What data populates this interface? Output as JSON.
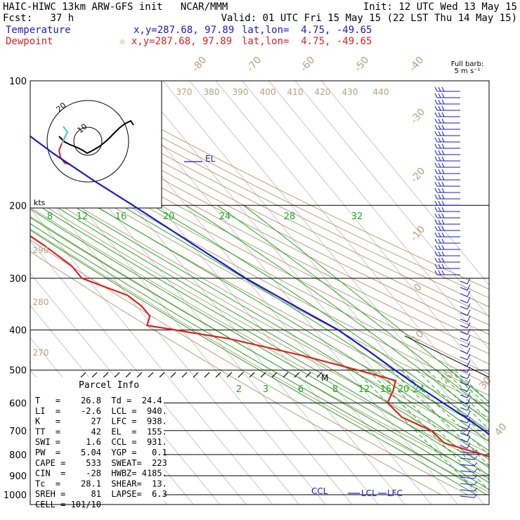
{
  "header": {
    "line1_left": "HAIC-HIWC 13km ARW-GFS init   NCAR/MMM",
    "line1_right": "Init: 12 UTC Wed 13 May 15",
    "line2_left": "Fcst:   37 h",
    "line2_right": "Valid: 01 UTC Fri 15 May 15 (22 LST Thu 14 May 15)",
    "temp_label": "Temperature",
    "temp_xy": "x,y=287.68, 97.89",
    "temp_latlon": "lat,lon=  4.75, -49.65",
    "dew_label": "Dewpoint",
    "dew_xy": "☆ x,y=287.68, 97.89",
    "dew_latlon": "lat,lon=  4.75, -49.65"
  },
  "barb_key": {
    "line1": "Full barb:",
    "line2": "5 m s⁻¹"
  },
  "colors": {
    "temperature": "#1a1acc",
    "dewpoint": "#e02020",
    "mixing_ratio": "#22a822",
    "dry_adiabat": "#b8a07a",
    "isobar": "#000000",
    "grid": "#c8c8c8"
  },
  "chart_data": {
    "type": "skew-t",
    "pressure_levels": [
      "100",
      "200",
      "300",
      "400",
      "500",
      "600",
      "700",
      "800",
      "900",
      "1000"
    ],
    "isotherm_labels": [
      "-80",
      "-70",
      "-60",
      "-50",
      "-40",
      "-30",
      "-20",
      "-10",
      "0",
      "10",
      "20",
      "30",
      "40"
    ],
    "theta_labels": [
      "370",
      "380",
      "390",
      "400",
      "410",
      "420",
      "430",
      "440",
      "290",
      "280",
      "270"
    ],
    "mixing_ratio_labels_upper": [
      "8",
      "12",
      "16",
      "20",
      "24",
      "28",
      "32"
    ],
    "mixing_ratio_labels_lower": [
      "2",
      "3",
      "4",
      "6",
      "8",
      "12",
      "16",
      "20",
      "24"
    ],
    "annotations": [
      "EL",
      "CCL",
      "LCL",
      "LFC",
      "M"
    ],
    "hodograph": {
      "unit": "kts",
      "ring_labels": [
        "10",
        "20"
      ]
    },
    "temperature": [
      {
        "p": 100,
        "t": -76
      },
      {
        "p": 120,
        "t": -72
      },
      {
        "p": 150,
        "t": -64
      },
      {
        "p": 175,
        "t": -57
      },
      {
        "p": 200,
        "t": -50
      },
      {
        "p": 250,
        "t": -39
      },
      {
        "p": 300,
        "t": -30
      },
      {
        "p": 350,
        "t": -20
      },
      {
        "p": 400,
        "t": -11
      },
      {
        "p": 450,
        "t": -6
      },
      {
        "p": 500,
        "t": -2
      },
      {
        "p": 550,
        "t": 2
      },
      {
        "p": 600,
        "t": 6
      },
      {
        "p": 650,
        "t": 10
      },
      {
        "p": 700,
        "t": 13
      },
      {
        "p": 750,
        "t": 15
      },
      {
        "p": 800,
        "t": 18
      },
      {
        "p": 850,
        "t": 20
      },
      {
        "p": 900,
        "t": 23
      },
      {
        "p": 950,
        "t": 25
      },
      {
        "p": 1000,
        "t": 26.8
      }
    ],
    "dewpoint": [
      {
        "p": 100,
        "t": -87
      },
      {
        "p": 130,
        "t": -96
      },
      {
        "p": 150,
        "t": -100
      },
      {
        "p": 180,
        "t": -96
      },
      {
        "p": 200,
        "t": -99
      },
      {
        "p": 220,
        "t": -102
      },
      {
        "p": 250,
        "t": -96
      },
      {
        "p": 280,
        "t": -92
      },
      {
        "p": 300,
        "t": -92
      },
      {
        "p": 330,
        "t": -80
      },
      {
        "p": 350,
        "t": -78
      },
      {
        "p": 370,
        "t": -78
      },
      {
        "p": 390,
        "t": -82
      },
      {
        "p": 420,
        "t": -55
      },
      {
        "p": 460,
        "t": -33
      },
      {
        "p": 500,
        "t": -16
      },
      {
        "p": 530,
        "t": -5
      },
      {
        "p": 560,
        "t": -9
      },
      {
        "p": 600,
        "t": -15
      },
      {
        "p": 650,
        "t": -14
      },
      {
        "p": 700,
        "t": -7
      },
      {
        "p": 750,
        "t": -6
      },
      {
        "p": 800,
        "t": 5
      },
      {
        "p": 850,
        "t": 14
      },
      {
        "p": 900,
        "t": 21
      },
      {
        "p": 940,
        "t": 22
      },
      {
        "p": 970,
        "t": 24.4
      },
      {
        "p": 1000,
        "t": 24.4
      }
    ]
  },
  "parcel_info": {
    "title": "Parcel Info",
    "rows": [
      "T   =    26.8  Td =  24.4",
      "LI  =    -2.6  LCL =  940.",
      "K   =      27  LFC =  938.",
      "TT  =      42  EL  =  155.",
      "SWI =     1.6  CCL =  931.",
      "PW  =    5.04  YGP =   0.1",
      "CAPE =    533  SWEAT=  223",
      "CIN  =    -28  HWBZ= 4185.",
      "Tc  =    28.1  SHEAR=  13.",
      "SREH =     81  LAPSE=  6.3",
      "CELL = 101/10"
    ]
  }
}
